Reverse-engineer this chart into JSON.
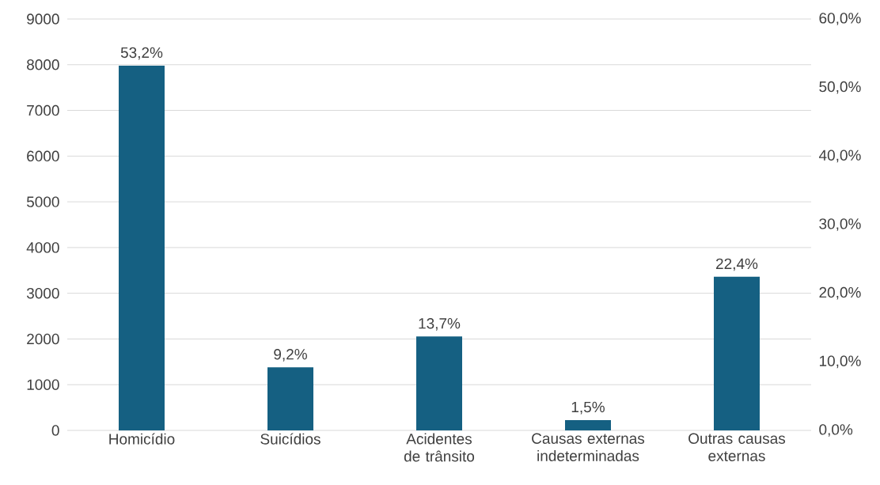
{
  "chart_data": {
    "type": "bar",
    "categories": [
      "Homicídio",
      "Suicídios",
      "Acidentes de trânsito",
      "Causas externas indeterminadas",
      "Outras causas externas"
    ],
    "series": [
      {
        "values": [
          53.2,
          9.2,
          13.7,
          1.5,
          22.4
        ],
        "color": "#156082",
        "axis": "y2",
        "value_labels": [
          "53,2%",
          "9,2%",
          "13,7%",
          "1,5%",
          "22,4%"
        ]
      }
    ],
    "ylim": [
      0,
      9000
    ],
    "yticks": [
      0,
      1000,
      2000,
      3000,
      4000,
      5000,
      6000,
      7000,
      8000,
      9000
    ],
    "y2lim": [
      0,
      60
    ],
    "y2ticks": [
      {
        "value": 0,
        "label": "0,0%"
      },
      {
        "value": 10,
        "label": "10,0%"
      },
      {
        "value": 20,
        "label": "20,0%"
      },
      {
        "value": 30,
        "label": "30,0%"
      },
      {
        "value": 40,
        "label": "40,0%"
      },
      {
        "value": 50,
        "label": "50,0%"
      },
      {
        "value": 60,
        "label": "60,0%"
      }
    ],
    "grid": "y"
  }
}
